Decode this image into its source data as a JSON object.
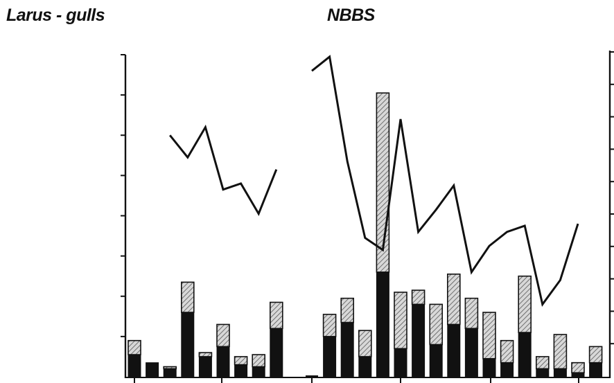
{
  "header": {
    "left_title": "Larus - gulls",
    "right_title": "NBBS"
  },
  "colors": {
    "ink": "#111111",
    "hatch_fill": "#d8d8d8",
    "background": "#ffffff"
  },
  "chart_data": {
    "type": "bar",
    "title": "",
    "xlabel": "",
    "ylabel": "",
    "ylim": [
      0,
      8
    ],
    "grid": false,
    "legend": "none",
    "note": "Stacked bars (solid lower segment + hatched upper segment) with an overlaid line series; the axes carry no printed tick labels, so values are on a relative 0-8 scale from the left-axis tick marks.",
    "bar_series": [
      {
        "segment": "solid",
        "values": [
          0.55,
          0.35,
          0.2,
          1.6,
          0.5,
          0.75,
          0.3,
          0.25,
          1.2,
          null,
          0.0,
          1.0,
          1.35,
          0.5,
          2.6,
          0.7,
          1.8,
          0.8,
          1.3,
          1.2,
          0.45,
          0.35,
          1.1,
          0.2,
          0.2,
          0.1,
          0.35
        ]
      },
      {
        "segment": "hatched",
        "values": [
          0.35,
          0.0,
          0.05,
          0.75,
          0.1,
          0.55,
          0.2,
          0.3,
          0.65,
          null,
          0.0,
          0.55,
          0.6,
          0.65,
          4.45,
          1.4,
          0.35,
          1.0,
          1.25,
          0.75,
          1.15,
          0.55,
          1.4,
          0.3,
          0.85,
          0.25,
          0.4
        ]
      }
    ],
    "line_series": [
      {
        "values": [
          null,
          null,
          6.0,
          5.45,
          6.2,
          4.65,
          4.8,
          4.05,
          5.15,
          null,
          7.6,
          7.95,
          5.35,
          3.45,
          3.15,
          6.4,
          3.6,
          4.15,
          4.75,
          2.6,
          3.25,
          3.6,
          3.75,
          1.8,
          2.4,
          3.8
        ]
      }
    ],
    "line_segments": [
      [
        2,
        8
      ],
      [
        10,
        25
      ]
    ]
  }
}
